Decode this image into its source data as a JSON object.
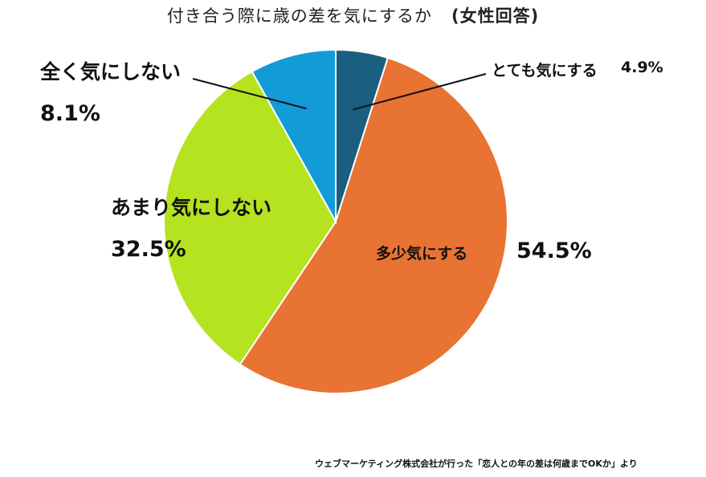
{
  "chart_data": {
    "type": "pie",
    "title": "付き合う際に歳の差を気にするか",
    "subtitle": "(女性回答)",
    "slices": [
      {
        "label": "とても気にする",
        "value": 4.9,
        "value_label": "4.9%",
        "color": "#1a5f80"
      },
      {
        "label": "多少気にする",
        "value": 54.5,
        "value_label": "54.5%",
        "color": "#e87332"
      },
      {
        "label": "あまり気にしない",
        "value": 32.5,
        "value_label": "32.5%",
        "color": "#b5e31f"
      },
      {
        "label": "全く気にしない",
        "value": 8.1,
        "value_label": "8.1%",
        "color": "#129bd7"
      }
    ],
    "start_angle": "12 o'clock",
    "direction": "clockwise",
    "legend": "none"
  },
  "source": "ウェブマーケティング株式会社が行った「恋人との年の差は何歳までOKか」より"
}
